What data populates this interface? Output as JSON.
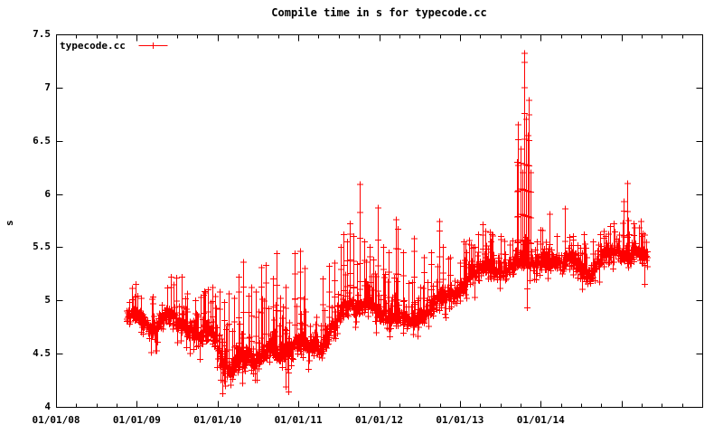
{
  "colors": {
    "series": "#ff0000",
    "axis": "#000000",
    "background": "#ffffff"
  },
  "chart_data": {
    "type": "scatter",
    "title": "Compile time in s for typecode.cc",
    "ylabel": "s",
    "xlabel": "",
    "grid": false,
    "legend_position": "top-left-inside",
    "series": [
      {
        "name": "typecode.cc",
        "marker": "+",
        "color": "#ff0000",
        "style": "points-with-vertical-error-bars"
      }
    ],
    "x_unit": "decimal years since 2008-01-01",
    "y_unit": "seconds",
    "xlim": [
      0,
      8
    ],
    "ylim": [
      4,
      7.5
    ],
    "x_tick_labels": [
      "01/01/08",
      "01/01/09",
      "01/01/10",
      "01/01/11",
      "01/01/12",
      "01/01/13",
      "01/01/14"
    ],
    "x_major_every_years": 1,
    "x_minor_per_major": 4,
    "y_tick_labels": [
      "7.5",
      "7",
      "6.5",
      "6",
      "5.5",
      "5",
      "4.5",
      "4"
    ],
    "x_range_of_data": [
      0.873,
      7.33
    ],
    "sample_step_years": 0.011,
    "seed": 1337,
    "noise": 0.045,
    "streak_prob": 0.26,
    "downstreak_prob": 0.1,
    "trend": [
      [
        0.87,
        4.85
      ],
      [
        1.0,
        4.87
      ],
      [
        1.08,
        4.8
      ],
      [
        1.18,
        4.7
      ],
      [
        1.3,
        4.82
      ],
      [
        1.42,
        4.88
      ],
      [
        1.52,
        4.8
      ],
      [
        1.62,
        4.72
      ],
      [
        1.75,
        4.7
      ],
      [
        1.88,
        4.72
      ],
      [
        1.97,
        4.65
      ],
      [
        2.05,
        4.42
      ],
      [
        2.15,
        4.36
      ],
      [
        2.25,
        4.42
      ],
      [
        2.35,
        4.5
      ],
      [
        2.45,
        4.42
      ],
      [
        2.55,
        4.48
      ],
      [
        2.65,
        4.55
      ],
      [
        2.75,
        4.48
      ],
      [
        2.85,
        4.52
      ],
      [
        2.95,
        4.6
      ],
      [
        3.05,
        4.62
      ],
      [
        3.15,
        4.55
      ],
      [
        3.28,
        4.52
      ],
      [
        3.4,
        4.7
      ],
      [
        3.52,
        4.88
      ],
      [
        3.62,
        4.98
      ],
      [
        3.75,
        4.93
      ],
      [
        3.88,
        5.0
      ],
      [
        4.0,
        4.9
      ],
      [
        4.1,
        4.86
      ],
      [
        4.25,
        4.83
      ],
      [
        4.4,
        4.8
      ],
      [
        4.55,
        4.85
      ],
      [
        4.7,
        4.98
      ],
      [
        4.85,
        5.06
      ],
      [
        5.0,
        5.1
      ],
      [
        5.15,
        5.25
      ],
      [
        5.3,
        5.32
      ],
      [
        5.45,
        5.25
      ],
      [
        5.6,
        5.3
      ],
      [
        5.75,
        5.4
      ],
      [
        5.9,
        5.36
      ],
      [
        6.05,
        5.36
      ],
      [
        6.2,
        5.35
      ],
      [
        6.35,
        5.4
      ],
      [
        6.5,
        5.28
      ],
      [
        6.62,
        5.22
      ],
      [
        6.75,
        5.42
      ],
      [
        6.9,
        5.48
      ],
      [
        7.05,
        5.42
      ],
      [
        7.2,
        5.45
      ],
      [
        7.3,
        5.42
      ]
    ],
    "spread": [
      [
        0.87,
        0.1
      ],
      [
        1.3,
        0.13
      ],
      [
        1.8,
        0.13
      ],
      [
        2.1,
        0.14
      ],
      [
        2.5,
        0.16
      ],
      [
        3.0,
        0.14
      ],
      [
        3.3,
        0.1
      ],
      [
        3.7,
        0.14
      ],
      [
        4.3,
        0.12
      ],
      [
        5.0,
        0.11
      ],
      [
        5.5,
        0.1
      ],
      [
        6.0,
        0.09
      ],
      [
        6.6,
        0.09
      ],
      [
        7.0,
        0.1
      ],
      [
        7.3,
        0.09
      ]
    ],
    "spikes_high": [
      [
        0.98,
        5.15
      ],
      [
        1.05,
        5.02
      ],
      [
        1.2,
        4.97
      ],
      [
        1.42,
        5.12
      ],
      [
        1.49,
        5.21
      ],
      [
        1.56,
        5.22
      ],
      [
        1.62,
        5.06
      ],
      [
        1.72,
        5.0
      ],
      [
        1.82,
        5.05
      ],
      [
        1.88,
        5.1
      ],
      [
        1.94,
        5.12
      ],
      [
        2.02,
        5.08
      ],
      [
        2.08,
        4.98
      ],
      [
        2.14,
        5.06
      ],
      [
        2.2,
        5.02
      ],
      [
        2.26,
        5.22
      ],
      [
        2.32,
        5.36
      ],
      [
        2.38,
        5.04
      ],
      [
        2.42,
        5.12
      ],
      [
        2.47,
        5.08
      ],
      [
        2.54,
        5.31
      ],
      [
        2.6,
        5.33
      ],
      [
        2.68,
        5.2
      ],
      [
        2.73,
        5.44
      ],
      [
        2.78,
        5.02
      ],
      [
        2.84,
        5.12
      ],
      [
        2.95,
        5.44
      ],
      [
        3.02,
        5.46
      ],
      [
        3.08,
        5.3
      ],
      [
        3.3,
        5.2
      ],
      [
        3.38,
        5.32
      ],
      [
        3.45,
        5.35
      ],
      [
        3.52,
        5.5
      ],
      [
        3.56,
        5.62
      ],
      [
        3.6,
        5.55
      ],
      [
        3.64,
        5.72
      ],
      [
        3.68,
        5.6
      ],
      [
        3.76,
        6.09
      ],
      [
        3.82,
        5.55
      ],
      [
        3.88,
        5.5
      ],
      [
        3.98,
        5.87
      ],
      [
        4.05,
        5.5
      ],
      [
        4.12,
        5.45
      ],
      [
        4.21,
        5.76
      ],
      [
        4.23,
        5.67
      ],
      [
        4.3,
        5.45
      ],
      [
        4.43,
        5.58
      ],
      [
        4.55,
        5.4
      ],
      [
        4.64,
        5.45
      ],
      [
        4.74,
        5.74
      ],
      [
        4.79,
        5.5
      ],
      [
        4.88,
        5.4
      ],
      [
        5.0,
        5.35
      ],
      [
        5.05,
        5.55
      ],
      [
        5.22,
        5.62
      ],
      [
        5.28,
        5.71
      ],
      [
        5.32,
        5.65
      ],
      [
        5.38,
        5.55
      ],
      [
        5.5,
        5.6
      ],
      [
        5.62,
        5.52
      ],
      [
        5.71,
        6.3
      ],
      [
        5.72,
        6.65
      ],
      [
        5.755,
        6.42
      ],
      [
        5.775,
        6.2
      ],
      [
        5.8,
        7.32
      ],
      [
        5.815,
        6.7
      ],
      [
        5.835,
        6.55
      ],
      [
        5.855,
        6.88
      ],
      [
        5.875,
        6.2
      ],
      [
        5.95,
        5.55
      ],
      [
        6.0,
        5.66
      ],
      [
        6.11,
        5.81
      ],
      [
        6.2,
        5.6
      ],
      [
        6.3,
        5.86
      ],
      [
        6.4,
        5.6
      ],
      [
        6.53,
        5.62
      ],
      [
        6.65,
        5.55
      ],
      [
        6.78,
        5.65
      ],
      [
        6.9,
        5.72
      ],
      [
        7.03,
        5.93
      ],
      [
        7.07,
        6.1
      ],
      [
        7.15,
        5.72
      ],
      [
        7.25,
        5.6
      ]
    ],
    "spikes_low": [
      [
        2.3,
        4.22
      ],
      [
        2.48,
        4.25
      ],
      [
        2.87,
        4.14
      ],
      [
        5.83,
        4.93
      ],
      [
        7.28,
        5.15
      ]
    ]
  }
}
